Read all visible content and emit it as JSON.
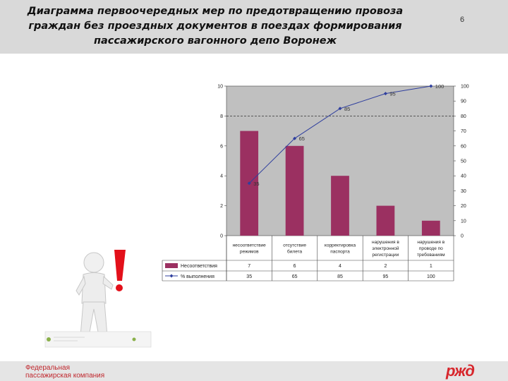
{
  "slide": {
    "title": "Диаграмма первоочередных мер по предотвращению провоза\nграждан без проездных документов в поездах формирования\nпассажирского вагонного депо Воронеж",
    "number": "6",
    "company": "Федеральная\nпассажирская компания",
    "logo_text": "ржд"
  },
  "chart_data": {
    "type": "bar",
    "categories": [
      [
        "несоответствие",
        "режимов"
      ],
      [
        "отсутствие",
        "билета"
      ],
      [
        "корректировка",
        "паспорта"
      ],
      [
        "нарушения в",
        "электронной",
        "регистрации"
      ],
      [
        "нарушения в",
        "проводе по",
        "требованиям"
      ]
    ],
    "series": [
      {
        "name": "Несоответствия",
        "kind": "bar",
        "axis": "left",
        "color": "#9b3061",
        "values": [
          7,
          6,
          4,
          2,
          1
        ]
      },
      {
        "name": "% выполнения",
        "kind": "line",
        "axis": "right",
        "color": "#2f3f9e",
        "values": [
          35,
          65,
          85,
          95,
          100
        ]
      }
    ],
    "y_left": {
      "min": 0,
      "max": 10,
      "ticks": [
        0,
        2,
        4,
        6,
        8,
        10
      ]
    },
    "y_right": {
      "min": 0,
      "max": 100,
      "ticks": [
        0,
        10,
        20,
        30,
        40,
        50,
        60,
        70,
        80,
        90,
        100
      ]
    },
    "reference_line": {
      "value": 8,
      "axis": "left",
      "style": "dashed"
    },
    "plot_background": "#c0c0c0",
    "data_table": true
  }
}
